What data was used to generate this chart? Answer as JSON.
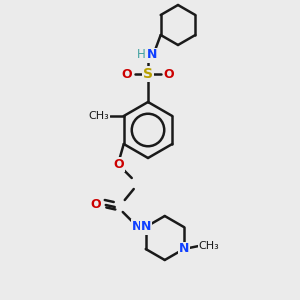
{
  "background_color": "#ebebeb",
  "line_color": "#1a1a1a",
  "bond_width": 1.8,
  "colors": {
    "S": "#b8a000",
    "O": "#cc0000",
    "N": "#1040ff",
    "H": "#40a0a0",
    "C": "#1a1a1a"
  },
  "fig_width": 3.0,
  "fig_height": 3.0,
  "dpi": 100
}
